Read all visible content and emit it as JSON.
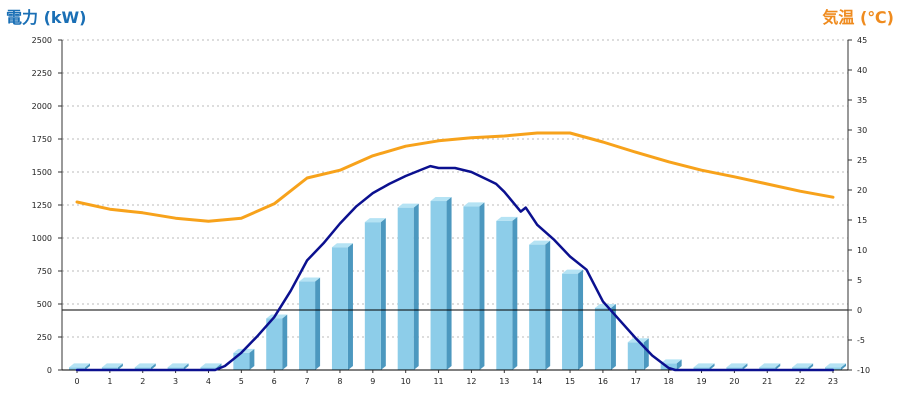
{
  "chart_data": {
    "type": "bar",
    "x": [
      0,
      1,
      2,
      3,
      4,
      5,
      6,
      7,
      8,
      9,
      10,
      11,
      12,
      13,
      14,
      15,
      16,
      17,
      18,
      19,
      20,
      21,
      22,
      23
    ],
    "left_axis": {
      "label": "電力 (kW)",
      "min": 0,
      "max": 2500,
      "ticks": [
        2500,
        2250,
        2000,
        1750,
        1500,
        1250,
        1000,
        750,
        500,
        250,
        0
      ]
    },
    "right_axis": {
      "label": "気温 (℃)",
      "min": -10,
      "max": 45,
      "ticks": [
        45,
        40,
        35,
        30,
        25,
        20,
        15,
        10,
        5,
        0,
        -5,
        -10
      ]
    },
    "series": [
      {
        "type": "bar",
        "axis": "left",
        "values": [
          20,
          20,
          20,
          20,
          20,
          130,
          390,
          670,
          930,
          1120,
          1230,
          1280,
          1240,
          1130,
          950,
          730,
          470,
          210,
          50,
          20,
          20,
          20,
          20,
          20
        ]
      },
      {
        "type": "line",
        "axis": "left",
        "x": [
          0,
          4.2,
          4.5,
          5,
          5.5,
          6,
          6.5,
          7,
          7.5,
          8,
          8.5,
          9,
          9.5,
          10,
          10.5,
          10.75,
          11,
          11.5,
          12,
          12.5,
          12.75,
          13,
          13.5,
          13.65,
          14,
          14.5,
          15,
          15.5,
          16,
          16.5,
          17,
          17.5,
          18,
          18.2,
          23
        ],
        "values": [
          0,
          0,
          30,
          130,
          260,
          400,
          600,
          830,
          960,
          1110,
          1240,
          1340,
          1410,
          1470,
          1520,
          1545,
          1530,
          1530,
          1500,
          1440,
          1410,
          1350,
          1200,
          1230,
          1100,
          990,
          860,
          760,
          520,
          380,
          240,
          110,
          15,
          0,
          0
        ]
      },
      {
        "type": "line",
        "axis": "right",
        "values": [
          18.0,
          16.8,
          16.2,
          15.3,
          14.8,
          15.3,
          17.7,
          22.0,
          23.3,
          25.7,
          27.3,
          28.2,
          28.7,
          29.0,
          29.5,
          29.5,
          28.0,
          26.3,
          24.7,
          23.3,
          22.2,
          21.0,
          19.8,
          18.8
        ]
      }
    ],
    "reference_line": {
      "axis": "right",
      "value": 0
    },
    "grid": true,
    "grid_style": "dotted",
    "legend": "none",
    "colors": {
      "left_axis_label": "#1a6fb5",
      "right_axis_label": "#ef8b1e",
      "bar_front": "#8dcde9",
      "bar_side": "#4c98bf",
      "bar_top": "#b5e3f4",
      "power_line": "#0b108f",
      "temperature_line": "#f7a21b",
      "reference_line": "#000000",
      "axis": "#333333",
      "grid": "#bbbbbb"
    }
  }
}
